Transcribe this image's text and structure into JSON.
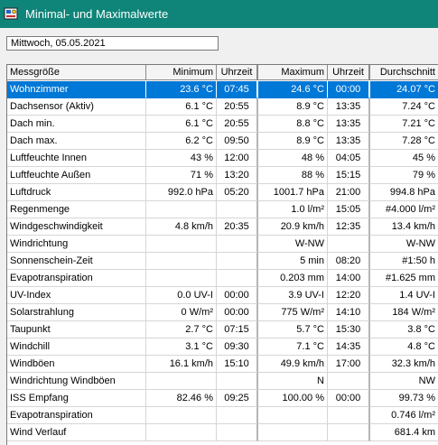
{
  "window": {
    "title": "Minimal- und Maximalwerte",
    "icon": "weather-station-icon"
  },
  "date_field": {
    "value": "Mittwoch, 05.05.2021"
  },
  "columns": [
    "Messgröße",
    "Minimum",
    "Uhrzeit",
    "Maximum",
    "Uhrzeit",
    "Durchschnitt"
  ],
  "rows": [
    [
      "Wohnzimmer",
      "23.6 °C",
      "07:45",
      "24.6 °C",
      "00:00",
      "24.07 °C"
    ],
    [
      "Dachsensor (Aktiv)",
      "6.1 °C",
      "20:55",
      "8.9 °C",
      "13:35",
      "7.24 °C"
    ],
    [
      "Dach min.",
      "6.1 °C",
      "20:55",
      "8.8 °C",
      "13:35",
      "7.21 °C"
    ],
    [
      "Dach max.",
      "6.2 °C",
      "09:50",
      "8.9 °C",
      "13:35",
      "7.28 °C"
    ],
    [
      "Luftfeuchte Innen",
      "43 %",
      "12:00",
      "48 %",
      "04:05",
      "45 %"
    ],
    [
      "Luftfeuchte Außen",
      "71 %",
      "13:20",
      "88 %",
      "15:15",
      "79 %"
    ],
    [
      "Luftdruck",
      "992.0 hPa",
      "05:20",
      "1001.7 hPa",
      "21:00",
      "994.8 hPa"
    ],
    [
      "Regenmenge",
      "",
      "",
      "1.0 l/m²",
      "15:05",
      "#4.000 l/m²"
    ],
    [
      "Windgeschwindigkeit",
      "4.8 km/h",
      "20:35",
      "20.9 km/h",
      "12:35",
      "13.4 km/h"
    ],
    [
      "Windrichtung",
      "",
      "",
      "W-NW",
      "",
      "W-NW"
    ],
    [
      "Sonnenschein-Zeit",
      "",
      "",
      "5 min",
      "08:20",
      "#1:50 h"
    ],
    [
      "Evapotranspiration",
      "",
      "",
      "0.203 mm",
      "14:00",
      "#1.625 mm"
    ],
    [
      "UV-Index",
      "0.0 UV-I",
      "00:00",
      "3.9 UV-I",
      "12:20",
      "1.4 UV-I"
    ],
    [
      "Solarstrahlung",
      "0 W/m²",
      "00:00",
      "775 W/m²",
      "14:10",
      "184 W/m²"
    ],
    [
      "Taupunkt",
      "2.7 °C",
      "07:15",
      "5.7 °C",
      "15:30",
      "3.8 °C"
    ],
    [
      "Windchill",
      "3.1 °C",
      "09:30",
      "7.1 °C",
      "14:35",
      "4.8 °C"
    ],
    [
      "Windböen",
      "16.1 km/h",
      "15:10",
      "49.9 km/h",
      "17:00",
      "32.3 km/h"
    ],
    [
      "Windrichtung Windböen",
      "",
      "",
      "N",
      "",
      "NW"
    ],
    [
      "ISS Empfang",
      "82.46 %",
      "09:25",
      "100.00 %",
      "00:00",
      "99.73 %"
    ],
    [
      "Evapotranspiration",
      "",
      "",
      "",
      "",
      "0.746 l/m²"
    ],
    [
      "Wind Verlauf",
      "",
      "",
      "",
      "",
      "681.4 km"
    ]
  ],
  "selected_row": 0,
  "colors": {
    "titlebar": "#0f8479",
    "selection": "#0078d7"
  }
}
